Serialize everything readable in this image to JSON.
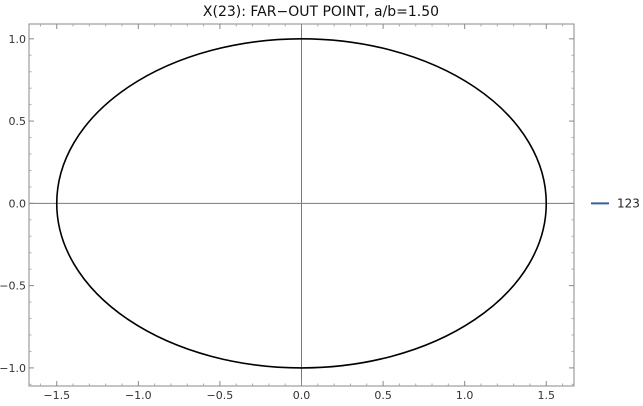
{
  "chart_data": {
    "type": "line",
    "title": "X(23): FAR−OUT POINT, a/b=1.50",
    "xlabel": "",
    "ylabel": "",
    "xlim": [
      -1.67,
      1.67
    ],
    "ylim": [
      -1.11,
      1.09
    ],
    "x_ticks": [
      -1.5,
      -1.0,
      -0.5,
      0.0,
      0.5,
      1.0,
      1.5
    ],
    "x_tick_labels": [
      "−1.5",
      "−1.0",
      "−0.5",
      "0.0",
      "0.5",
      "1.0",
      "1.5"
    ],
    "y_ticks": [
      -1.0,
      -0.5,
      0.0,
      0.5,
      1.0
    ],
    "y_tick_labels": [
      "−1.0",
      "−0.5",
      "0.0",
      "0.5",
      "1.0"
    ],
    "grid": false,
    "axes_through_origin": true,
    "legend_position": "right",
    "series": [
      {
        "name": "123",
        "shape": "ellipse",
        "center": [
          0,
          0
        ],
        "semi_axis_x": 1.5,
        "semi_axis_y": 1.0,
        "color": "#000000",
        "legend_color": "#3a5f9a"
      }
    ]
  }
}
